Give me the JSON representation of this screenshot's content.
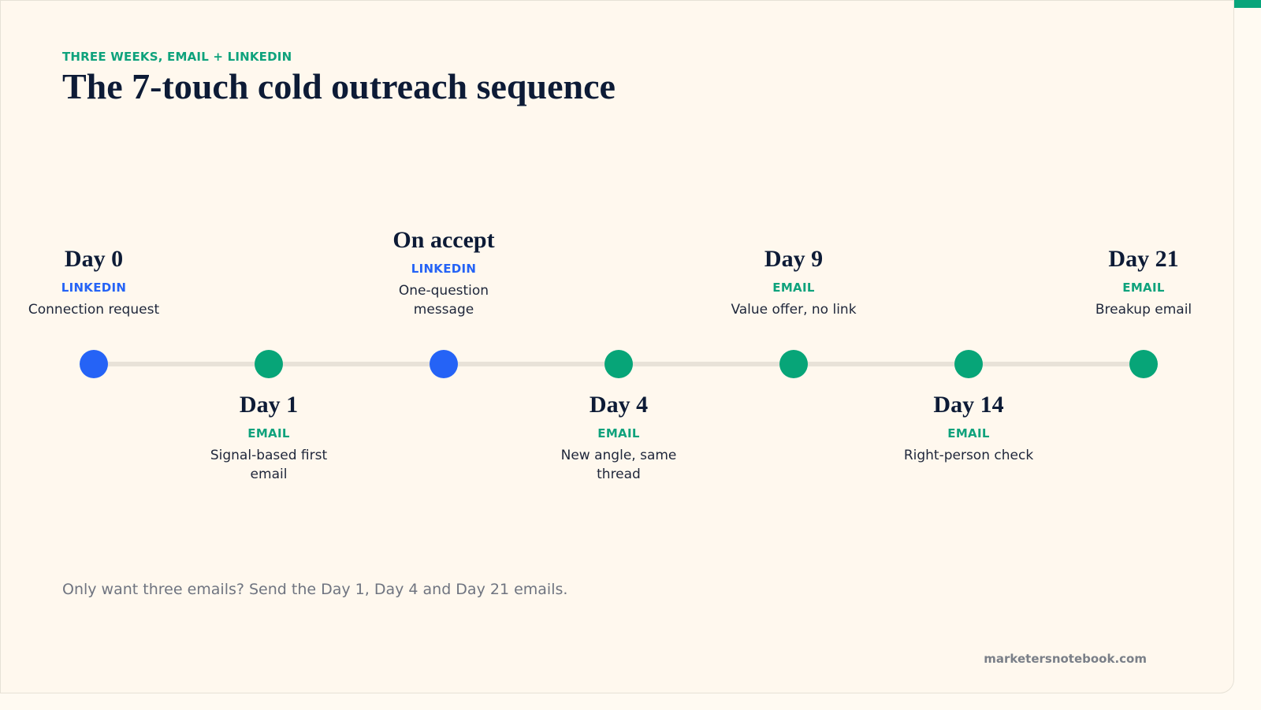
{
  "header": {
    "eyebrow": "THREE WEEKS, EMAIL + LINKEDIN",
    "title": "The 7-touch cold outreach sequence"
  },
  "timeline": {
    "steps": [
      {
        "day": "Day 0",
        "channel": "LINKEDIN",
        "description": "Connection request",
        "position": "above",
        "type": "linkedin"
      },
      {
        "day": "Day 1",
        "channel": "EMAIL",
        "description": "Signal-based first email",
        "position": "below",
        "type": "email"
      },
      {
        "day": "On accept",
        "channel": "LINKEDIN",
        "description": "One-question message",
        "position": "above",
        "type": "linkedin"
      },
      {
        "day": "Day 4",
        "channel": "EMAIL",
        "description": "New angle, same thread",
        "position": "below",
        "type": "email"
      },
      {
        "day": "Day 9",
        "channel": "EMAIL",
        "description": "Value offer, no link",
        "position": "above",
        "type": "email"
      },
      {
        "day": "Day 14",
        "channel": "EMAIL",
        "description": "Right-person check",
        "position": "below",
        "type": "email"
      },
      {
        "day": "Day 21",
        "channel": "EMAIL",
        "description": "Breakup email",
        "position": "above",
        "type": "email"
      }
    ]
  },
  "footer": {
    "note": "Only want three emails? Send the Day 1, Day 4 and Day 21 emails.",
    "brand": "marketersnotebook.com"
  },
  "colors": {
    "accent": "#08a57b",
    "linkedin": "#2563f6",
    "email": "#07a578",
    "title": "#0d1b36"
  }
}
